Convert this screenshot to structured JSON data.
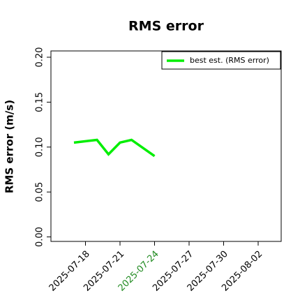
{
  "chart_data": {
    "type": "line",
    "title": "RMS error",
    "y_label": "RMS error (m/s)",
    "x": [
      "2025-07-17",
      "2025-07-19",
      "2025-07-20",
      "2025-07-21",
      "2025-07-22",
      "2025-07-24"
    ],
    "series": [
      {
        "name": "best est. (RMS error)",
        "color": "#00ee00",
        "values": [
          0.105,
          0.108,
          0.092,
          0.105,
          0.108,
          0.09
        ]
      }
    ],
    "xlim": [
      "2025-07-15",
      "2025-08-04"
    ],
    "xticks": [
      "2025-07-18",
      "2025-07-21",
      "2025-07-24",
      "2025-07-27",
      "2025-07-30",
      "2025-08-02"
    ],
    "xtick_colors": [
      "#000000",
      "#000000",
      "#228b22",
      "#000000",
      "#000000",
      "#000000"
    ],
    "ylim": [
      -0.005,
      0.207
    ],
    "yticks": [
      {
        "value": 0,
        "label": "0.00"
      },
      {
        "value": 0.05,
        "label": "0.05"
      },
      {
        "value": 0.1,
        "label": "0.10"
      },
      {
        "value": 0.15,
        "label": "0.15"
      },
      {
        "value": 0.2,
        "label": "0.20"
      }
    ],
    "legend": "top-right"
  }
}
